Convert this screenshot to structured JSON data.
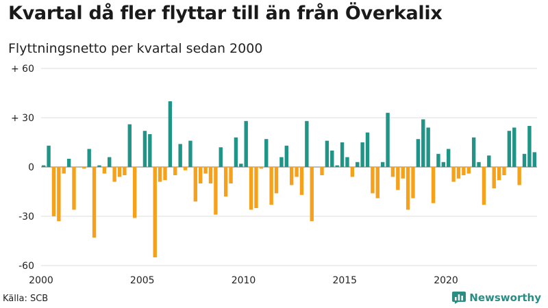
{
  "title": "Kvartal då fler flyttar till än från Överkalix",
  "subtitle": "Flyttningsnetto per kvartal sedan 2000",
  "source": "Källa: SCB",
  "brand": "Newsworthy",
  "colors": {
    "positive": "#1f9487",
    "negative": "#f5a11b",
    "grid": "#dddddd",
    "zero": "#777777"
  },
  "chart_data": {
    "type": "bar",
    "title": "Kvartal då fler flyttar till än från Överkalix",
    "subtitle": "Flyttningsnetto per kvartal sedan 2000",
    "xlabel": "",
    "ylabel": "",
    "ylim": [
      -60,
      60
    ],
    "yticks": [
      {
        "value": 60,
        "label": "+ 60"
      },
      {
        "value": 30,
        "label": "+ 30"
      },
      {
        "value": 0,
        "label": "0"
      },
      {
        "value": -30,
        "label": "-30"
      },
      {
        "value": -60,
        "label": "-60"
      }
    ],
    "xticks": [
      {
        "value": 2000,
        "label": "2000"
      },
      {
        "value": 2005,
        "label": "2005"
      },
      {
        "value": 2010,
        "label": "2010"
      },
      {
        "value": 2015,
        "label": "2015"
      },
      {
        "value": 2020,
        "label": "2020"
      }
    ],
    "grid": true,
    "start_year": 2000,
    "quarters_per_year": 4,
    "values": [
      1,
      13,
      -30,
      -33,
      -4,
      5,
      -26,
      0,
      -1,
      11,
      -43,
      1,
      -4,
      6,
      -9,
      -6,
      -5,
      26,
      -31,
      0,
      22,
      20,
      -55,
      -9,
      -8,
      40,
      -5,
      14,
      -2,
      16,
      -21,
      -10,
      -4,
      -10,
      -29,
      12,
      -18,
      -10,
      18,
      2,
      28,
      -26,
      -25,
      -1,
      17,
      -23,
      -16,
      6,
      13,
      -11,
      -6,
      -17,
      28,
      -33,
      0,
      -5,
      16,
      10,
      1,
      15,
      6,
      -6,
      3,
      15,
      21,
      -16,
      -19,
      3,
      33,
      -6,
      -14,
      -7,
      -26,
      -19,
      17,
      29,
      24,
      -22,
      8,
      3,
      11,
      -9,
      -7,
      -5,
      -4,
      18,
      3,
      -23,
      7,
      -13,
      -8,
      -5,
      22,
      24,
      -11,
      8,
      25,
      9
    ]
  }
}
